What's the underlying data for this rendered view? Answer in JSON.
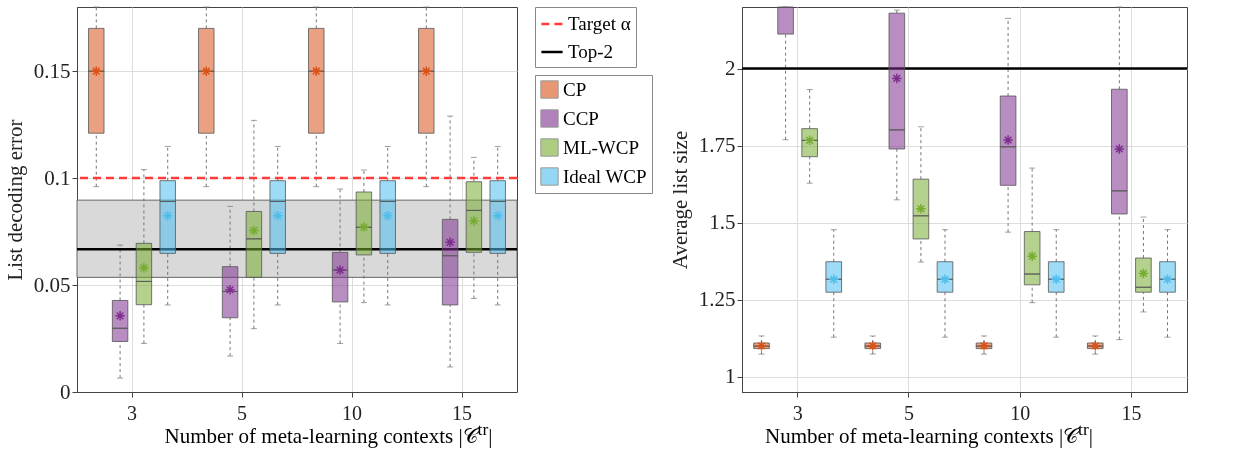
{
  "chart_data": [
    {
      "type": "box",
      "categories": [
        "3",
        "5",
        "10",
        "15"
      ],
      "ylabel": "List decoding error",
      "xlabel": "Number of meta-learning contexts |𝒞$^{tr}$|",
      "ylim": [
        0,
        0.18
      ],
      "yticks": [
        0,
        0.05,
        0.1,
        0.15
      ],
      "grid": true,
      "legend": "right",
      "ref_lines": [
        {
          "axis": "y",
          "value": 0.1,
          "label": "Target α",
          "color": "#ff3b3b",
          "line_style": "dashed"
        },
        {
          "axis": "y",
          "value": 0.0667,
          "label": "Top-2",
          "color": "#000000",
          "line_style": "solid"
        }
      ],
      "bands": [
        {
          "axis": "y",
          "from": 0.0536,
          "to": 0.0897,
          "color": "#d9d9d9"
        }
      ],
      "series": [
        {
          "name": "CP",
          "color": "#d95319",
          "boxes": [
            {
              "low": 0.096,
              "q1": 0.121,
              "median": 0.15,
              "q3": 0.17,
              "high": 0.18,
              "mean": 0.15
            },
            {
              "low": 0.096,
              "q1": 0.121,
              "median": 0.15,
              "q3": 0.17,
              "high": 0.18,
              "mean": 0.15
            },
            {
              "low": 0.096,
              "q1": 0.121,
              "median": 0.15,
              "q3": 0.17,
              "high": 0.18,
              "mean": 0.15
            },
            {
              "low": 0.096,
              "q1": 0.121,
              "median": 0.15,
              "q3": 0.17,
              "high": 0.18,
              "mean": 0.15
            }
          ]
        },
        {
          "name": "CCP",
          "color": "#7e2f8e",
          "boxes": [
            {
              "low": 0.0065,
              "q1": 0.0236,
              "median": 0.0298,
              "q3": 0.0428,
              "high": 0.0687,
              "mean": 0.0356
            },
            {
              "low": 0.0168,
              "q1": 0.0347,
              "median": 0.047,
              "q3": 0.0586,
              "high": 0.0868,
              "mean": 0.0478
            },
            {
              "low": 0.0227,
              "q1": 0.0421,
              "median": 0.057,
              "q3": 0.0653,
              "high": 0.0949,
              "mean": 0.057
            },
            {
              "low": 0.0117,
              "q1": 0.0407,
              "median": 0.0637,
              "q3": 0.0807,
              "high": 0.129,
              "mean": 0.07
            }
          ]
        },
        {
          "name": "ML-WCP",
          "color": "#77ac30",
          "boxes": [
            {
              "low": 0.0227,
              "q1": 0.0408,
              "median": 0.0517,
              "q3": 0.0695,
              "high": 0.104,
              "mean": 0.0581
            },
            {
              "low": 0.0296,
              "q1": 0.0536,
              "median": 0.0716,
              "q3": 0.0844,
              "high": 0.127,
              "mean": 0.0755
            },
            {
              "low": 0.0418,
              "q1": 0.0641,
              "median": 0.077,
              "q3": 0.0935,
              "high": 0.1038,
              "mean": 0.0771
            },
            {
              "low": 0.0437,
              "q1": 0.0653,
              "median": 0.0849,
              "q3": 0.0983,
              "high": 0.1097,
              "mean": 0.08
            }
          ]
        },
        {
          "name": "Ideal WCP",
          "color": "#4dbeee",
          "boxes": [
            {
              "low": 0.0407,
              "q1": 0.0648,
              "median": 0.0891,
              "q3": 0.0988,
              "high": 0.1148,
              "mean": 0.0824
            },
            {
              "low": 0.0407,
              "q1": 0.0648,
              "median": 0.0891,
              "q3": 0.0988,
              "high": 0.1148,
              "mean": 0.0824
            },
            {
              "low": 0.0407,
              "q1": 0.0648,
              "median": 0.0891,
              "q3": 0.0988,
              "high": 0.1148,
              "mean": 0.0824
            },
            {
              "low": 0.0407,
              "q1": 0.0648,
              "median": 0.0891,
              "q3": 0.0988,
              "high": 0.1148,
              "mean": 0.0824
            }
          ]
        }
      ]
    },
    {
      "type": "box",
      "categories": [
        "3",
        "5",
        "10",
        "15"
      ],
      "ylabel": "Average list size",
      "xlabel": "Number of meta-learning contexts |𝒞$^{tr}$|",
      "ylim": [
        0.95,
        2.2
      ],
      "yticks": [
        1,
        1.25,
        1.5,
        1.75,
        2
      ],
      "grid": true,
      "ref_lines": [
        {
          "axis": "y",
          "value": 2,
          "color": "#000000",
          "line_style": "solid"
        }
      ],
      "series": [
        {
          "color": "#d95319",
          "boxes": [
            {
              "low": 1.073,
              "q1": 1.091,
              "median": 1.099,
              "q3": 1.109,
              "high": 1.132,
              "mean": 1.1
            },
            {
              "low": 1.073,
              "q1": 1.091,
              "median": 1.099,
              "q3": 1.109,
              "high": 1.132,
              "mean": 1.1
            },
            {
              "low": 1.073,
              "q1": 1.091,
              "median": 1.099,
              "q3": 1.109,
              "high": 1.132,
              "mean": 1.1
            },
            {
              "low": 1.073,
              "q1": 1.091,
              "median": 1.099,
              "q3": 1.109,
              "high": 1.132,
              "mean": 1.1
            }
          ]
        },
        {
          "color": "#7e2f8e",
          "boxes": [
            {
              "low": 1.769,
              "q1": 2.112,
              "median": null,
              "q3": 2.2,
              "high": 2.2,
              "mean": null
            },
            {
              "low": 1.574,
              "q1": 1.739,
              "median": 1.801,
              "q3": 2.18,
              "high": 2.19,
              "mean": 1.968
            },
            {
              "low": 1.469,
              "q1": 1.621,
              "median": 1.746,
              "q3": 1.911,
              "high": 2.163,
              "mean": 1.768
            },
            {
              "low": 1.12,
              "q1": 1.528,
              "median": 1.603,
              "q3": 1.933,
              "high": 2.2,
              "mean": 1.739
            }
          ]
        },
        {
          "color": "#77ac30",
          "boxes": [
            {
              "low": 1.628,
              "q1": 1.714,
              "median": 1.767,
              "q3": 1.805,
              "high": 1.932,
              "mean": 1.767
            },
            {
              "low": 1.372,
              "q1": 1.447,
              "median": 1.522,
              "q3": 1.641,
              "high": 1.811,
              "mean": 1.545
            },
            {
              "low": 1.24,
              "q1": 1.298,
              "median": 1.333,
              "q3": 1.471,
              "high": 1.677,
              "mean": 1.391
            },
            {
              "low": 1.21,
              "q1": 1.274,
              "median": 1.29,
              "q3": 1.385,
              "high": 1.518,
              "mean": 1.335
            }
          ]
        },
        {
          "color": "#4dbeee",
          "boxes": [
            {
              "low": 1.128,
              "q1": 1.274,
              "median": 1.316,
              "q3": 1.373,
              "high": 1.477,
              "mean": 1.316
            },
            {
              "low": 1.128,
              "q1": 1.274,
              "median": 1.316,
              "q3": 1.373,
              "high": 1.477,
              "mean": 1.316
            },
            {
              "low": 1.128,
              "q1": 1.274,
              "median": 1.316,
              "q3": 1.373,
              "high": 1.477,
              "mean": 1.316
            },
            {
              "low": 1.128,
              "q1": 1.274,
              "median": 1.316,
              "q3": 1.373,
              "high": 1.477,
              "mean": 1.316
            }
          ]
        }
      ]
    }
  ]
}
